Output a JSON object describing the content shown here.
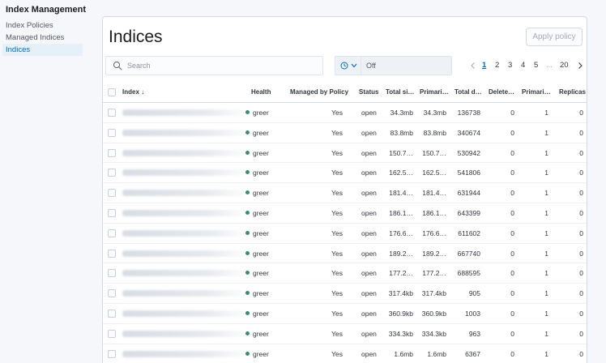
{
  "sidebar": {
    "title": "Index Management",
    "items": [
      {
        "label": "Index Policies",
        "active": false
      },
      {
        "label": "Managed Indices",
        "active": false
      },
      {
        "label": "Indices",
        "active": true
      }
    ]
  },
  "header": {
    "title": "Indices",
    "apply_policy_label": "Apply policy"
  },
  "search": {
    "placeholder": "Search",
    "value": ""
  },
  "refresh": {
    "value": "Off",
    "icon": "clock-icon"
  },
  "pagination": {
    "pages": [
      "1",
      "2",
      "3",
      "4",
      "5",
      "...",
      "20"
    ],
    "current": "1"
  },
  "table": {
    "columns": {
      "index": "Index",
      "health": "Health",
      "managed": "Managed by Policy",
      "status": "Status",
      "total_size": "Total si…",
      "primaries_size": "Primari…",
      "total_documents": "Total d…",
      "deleted_documents": "Delete…",
      "primaries": "Primari…",
      "replicas": "Replicas"
    },
    "sort_indicator": "↓",
    "rows": [
      {
        "health": "greer",
        "managed": "Yes",
        "status": "open",
        "total_size": "34.3mb",
        "primaries_size": "34.3mb",
        "total_documents": "136738",
        "deleted_documents": "0",
        "primaries": "1",
        "replicas": "0"
      },
      {
        "health": "greer",
        "managed": "Yes",
        "status": "open",
        "total_size": "83.8mb",
        "primaries_size": "83.8mb",
        "total_documents": "340674",
        "deleted_documents": "0",
        "primaries": "1",
        "replicas": "0"
      },
      {
        "health": "greer",
        "managed": "Yes",
        "status": "open",
        "total_size": "150.7…",
        "primaries_size": "150.7…",
        "total_documents": "530942",
        "deleted_documents": "0",
        "primaries": "1",
        "replicas": "0"
      },
      {
        "health": "greer",
        "managed": "Yes",
        "status": "open",
        "total_size": "162.5…",
        "primaries_size": "162.5…",
        "total_documents": "541806",
        "deleted_documents": "0",
        "primaries": "1",
        "replicas": "0"
      },
      {
        "health": "greer",
        "managed": "Yes",
        "status": "open",
        "total_size": "181.4…",
        "primaries_size": "181.4…",
        "total_documents": "631944",
        "deleted_documents": "0",
        "primaries": "1",
        "replicas": "0"
      },
      {
        "health": "greer",
        "managed": "Yes",
        "status": "open",
        "total_size": "186.1…",
        "primaries_size": "186.1…",
        "total_documents": "643399",
        "deleted_documents": "0",
        "primaries": "1",
        "replicas": "0"
      },
      {
        "health": "greer",
        "managed": "Yes",
        "status": "open",
        "total_size": "176.6…",
        "primaries_size": "176.6…",
        "total_documents": "611602",
        "deleted_documents": "0",
        "primaries": "1",
        "replicas": "0"
      },
      {
        "health": "greer",
        "managed": "Yes",
        "status": "open",
        "total_size": "189.2…",
        "primaries_size": "189.2…",
        "total_documents": "667740",
        "deleted_documents": "0",
        "primaries": "1",
        "replicas": "0"
      },
      {
        "health": "greer",
        "managed": "Yes",
        "status": "open",
        "total_size": "177.2…",
        "primaries_size": "177.2…",
        "total_documents": "688595",
        "deleted_documents": "0",
        "primaries": "1",
        "replicas": "0"
      },
      {
        "health": "greer",
        "managed": "Yes",
        "status": "open",
        "total_size": "317.4kb",
        "primaries_size": "317.4kb",
        "total_documents": "905",
        "deleted_documents": "0",
        "primaries": "1",
        "replicas": "0"
      },
      {
        "health": "greer",
        "managed": "Yes",
        "status": "open",
        "total_size": "360.9kb",
        "primaries_size": "360.9kb",
        "total_documents": "1003",
        "deleted_documents": "0",
        "primaries": "1",
        "replicas": "0"
      },
      {
        "health": "greer",
        "managed": "Yes",
        "status": "open",
        "total_size": "334.3kb",
        "primaries_size": "334.3kb",
        "total_documents": "963",
        "deleted_documents": "0",
        "primaries": "1",
        "replicas": "0"
      },
      {
        "health": "greer",
        "managed": "Yes",
        "status": "open",
        "total_size": "1.6mb",
        "primaries_size": "1.6mb",
        "total_documents": "6367",
        "deleted_documents": "0",
        "primaries": "1",
        "replicas": "0"
      }
    ]
  },
  "colors": {
    "accent": "#006bb8",
    "health_green": "#3c8a72",
    "border": "#d3dae6"
  }
}
